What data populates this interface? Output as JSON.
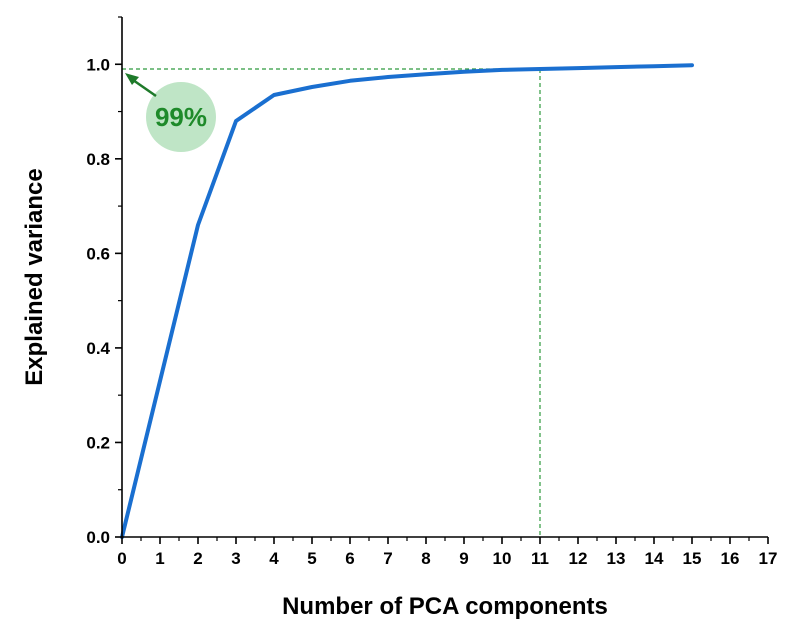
{
  "chart_data": {
    "type": "line",
    "xlabel": "Number of PCA components",
    "ylabel": "Explained variance",
    "xlim": [
      0,
      17
    ],
    "ylim": [
      0,
      1.1
    ],
    "x_ticks": [
      0,
      1,
      2,
      3,
      4,
      5,
      6,
      7,
      8,
      9,
      10,
      11,
      12,
      13,
      14,
      15,
      16,
      17
    ],
    "x_tick_labels": [
      "0",
      "1",
      "2",
      "3",
      "4",
      "5",
      "6",
      "7",
      "8",
      "9",
      "10",
      "11",
      "12",
      "13",
      "14",
      "15",
      "16",
      "17"
    ],
    "y_ticks": [
      0.0,
      0.2,
      0.4,
      0.6,
      0.8,
      1.0
    ],
    "y_tick_labels": [
      "0.0",
      "0.2",
      "0.4",
      "0.6",
      "0.8",
      "1.0"
    ],
    "grid": false,
    "series": [
      {
        "color": "#1a6fd0",
        "x": [
          0,
          1,
          2,
          3,
          4,
          5,
          6,
          7,
          8,
          9,
          10,
          11,
          12,
          13,
          14,
          15
        ],
        "y": [
          0.0,
          0.33,
          0.66,
          0.88,
          0.935,
          0.952,
          0.965,
          0.973,
          0.979,
          0.984,
          0.988,
          0.99,
          0.992,
          0.994,
          0.996,
          0.998
        ]
      }
    ],
    "reference_lines": {
      "color": "#2e9a3e",
      "style": "dashed",
      "horizontal_y": 0.99,
      "vertical_x": 11
    },
    "annotation": {
      "text": "99%",
      "text_color": "#1e8a2a",
      "bubble_color": "#bfe5c6",
      "arrow_color": "#1e7a2a",
      "points_to": [
        0,
        0.99
      ]
    }
  }
}
